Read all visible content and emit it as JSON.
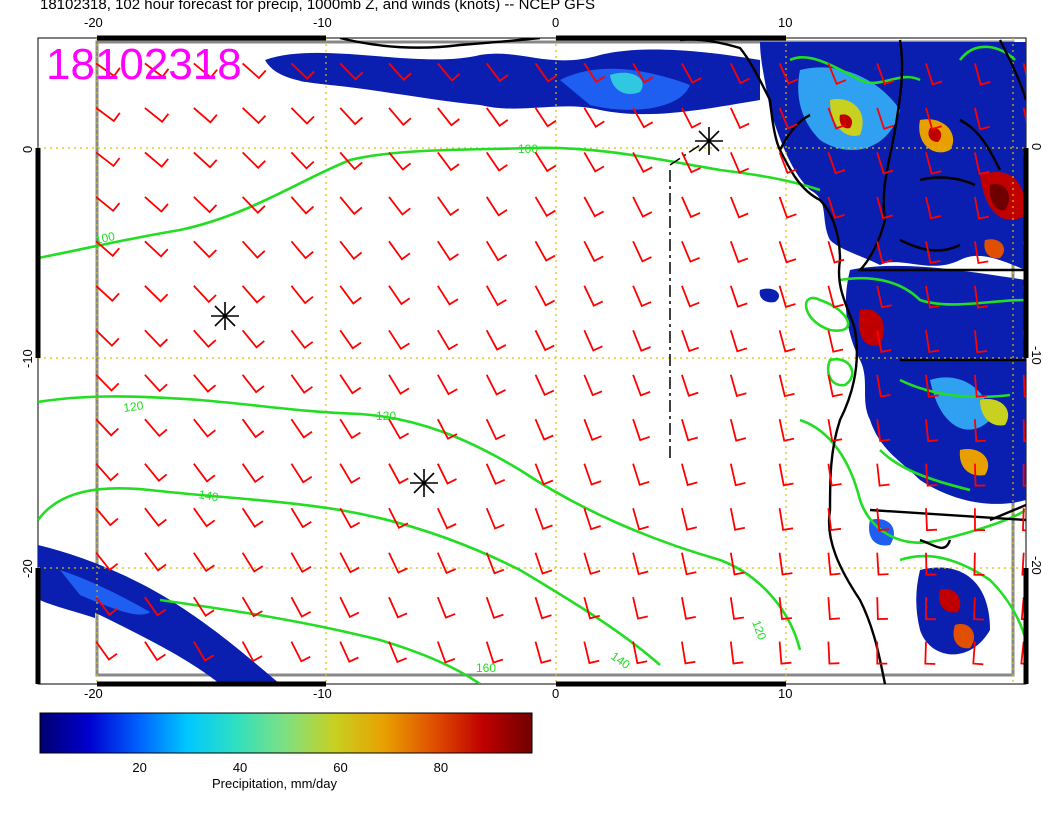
{
  "title": "18102318, 102 hour forecast for precip, 1000mb Z, and winds (knots) -- NCEP GFS",
  "stamp": "18102318",
  "map": {
    "lon_min": -22.5,
    "lon_max": 20,
    "lat_min": -25.5,
    "lat_max": 5,
    "lon_ticks": [
      "-20",
      "-10",
      "0",
      "10"
    ],
    "lat_ticks": [
      "0",
      "-10",
      "-20"
    ],
    "gridlines": "dotted-yellow",
    "contour_color": "#22dd22",
    "barb_color": "#ff0000",
    "contour_labels": [
      "100",
      "100",
      "120",
      "120",
      "140",
      "140",
      "160",
      "120"
    ],
    "wind_barbs": {
      "rows": 14,
      "cols": 20,
      "lat_top": 3.8,
      "lat_step": -2.1,
      "lon_left": -20,
      "lon_step": 2.1
    }
  },
  "colorbar": {
    "label": "Precipitation, mm/day",
    "ticks": [
      "20",
      "40",
      "60",
      "80"
    ],
    "tick_values": [
      20,
      40,
      60,
      80
    ],
    "range": [
      0,
      98
    ],
    "colors": [
      "#000070",
      "#0000d0",
      "#0060ff",
      "#00c8ff",
      "#30e0c0",
      "#80e080",
      "#c8d020",
      "#e8a000",
      "#e05000",
      "#c00000",
      "#700000"
    ]
  },
  "chart_data": {
    "type": "heatmap",
    "title": "18102318, 102 hour forecast for precip, 1000mb Z, and winds (knots) -- NCEP GFS",
    "xlabel": "",
    "ylabel": "",
    "xlim": [
      -22.5,
      20
    ],
    "ylim": [
      -25.5,
      5
    ],
    "x_ticks": [
      -20,
      -10,
      0,
      10
    ],
    "y_ticks": [
      0,
      -10,
      -20
    ],
    "contour_levels": [
      100,
      120,
      140,
      160
    ],
    "colorbar_label": "Precipitation, mm/day",
    "colorbar_ticks": [
      20,
      40,
      60,
      80
    ],
    "grid": true
  }
}
